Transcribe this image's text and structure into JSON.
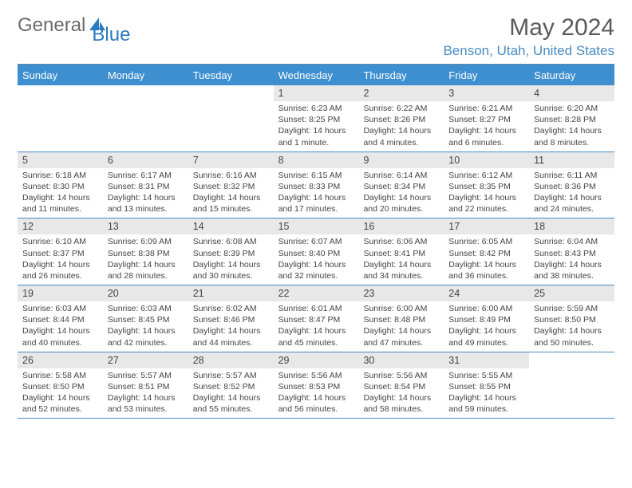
{
  "logo": {
    "word1": "General",
    "word2": "Blue"
  },
  "title": "May 2024",
  "location": "Benson, Utah, United States",
  "colors": {
    "accent": "#3d8fcf",
    "accent_line": "#4a8bc2",
    "day_bar": "#e8e8e8",
    "text": "#444444",
    "logo_gray": "#6a6a6a",
    "logo_blue": "#2b7bbf"
  },
  "days_of_week": [
    "Sunday",
    "Monday",
    "Tuesday",
    "Wednesday",
    "Thursday",
    "Friday",
    "Saturday"
  ],
  "first_day_index": 3,
  "days": [
    {
      "n": 1,
      "sr": "6:23 AM",
      "ss": "8:25 PM",
      "dl": "14 hours and 1 minute."
    },
    {
      "n": 2,
      "sr": "6:22 AM",
      "ss": "8:26 PM",
      "dl": "14 hours and 4 minutes."
    },
    {
      "n": 3,
      "sr": "6:21 AM",
      "ss": "8:27 PM",
      "dl": "14 hours and 6 minutes."
    },
    {
      "n": 4,
      "sr": "6:20 AM",
      "ss": "8:28 PM",
      "dl": "14 hours and 8 minutes."
    },
    {
      "n": 5,
      "sr": "6:18 AM",
      "ss": "8:30 PM",
      "dl": "14 hours and 11 minutes."
    },
    {
      "n": 6,
      "sr": "6:17 AM",
      "ss": "8:31 PM",
      "dl": "14 hours and 13 minutes."
    },
    {
      "n": 7,
      "sr": "6:16 AM",
      "ss": "8:32 PM",
      "dl": "14 hours and 15 minutes."
    },
    {
      "n": 8,
      "sr": "6:15 AM",
      "ss": "8:33 PM",
      "dl": "14 hours and 17 minutes."
    },
    {
      "n": 9,
      "sr": "6:14 AM",
      "ss": "8:34 PM",
      "dl": "14 hours and 20 minutes."
    },
    {
      "n": 10,
      "sr": "6:12 AM",
      "ss": "8:35 PM",
      "dl": "14 hours and 22 minutes."
    },
    {
      "n": 11,
      "sr": "6:11 AM",
      "ss": "8:36 PM",
      "dl": "14 hours and 24 minutes."
    },
    {
      "n": 12,
      "sr": "6:10 AM",
      "ss": "8:37 PM",
      "dl": "14 hours and 26 minutes."
    },
    {
      "n": 13,
      "sr": "6:09 AM",
      "ss": "8:38 PM",
      "dl": "14 hours and 28 minutes."
    },
    {
      "n": 14,
      "sr": "6:08 AM",
      "ss": "8:39 PM",
      "dl": "14 hours and 30 minutes."
    },
    {
      "n": 15,
      "sr": "6:07 AM",
      "ss": "8:40 PM",
      "dl": "14 hours and 32 minutes."
    },
    {
      "n": 16,
      "sr": "6:06 AM",
      "ss": "8:41 PM",
      "dl": "14 hours and 34 minutes."
    },
    {
      "n": 17,
      "sr": "6:05 AM",
      "ss": "8:42 PM",
      "dl": "14 hours and 36 minutes."
    },
    {
      "n": 18,
      "sr": "6:04 AM",
      "ss": "8:43 PM",
      "dl": "14 hours and 38 minutes."
    },
    {
      "n": 19,
      "sr": "6:03 AM",
      "ss": "8:44 PM",
      "dl": "14 hours and 40 minutes."
    },
    {
      "n": 20,
      "sr": "6:03 AM",
      "ss": "8:45 PM",
      "dl": "14 hours and 42 minutes."
    },
    {
      "n": 21,
      "sr": "6:02 AM",
      "ss": "8:46 PM",
      "dl": "14 hours and 44 minutes."
    },
    {
      "n": 22,
      "sr": "6:01 AM",
      "ss": "8:47 PM",
      "dl": "14 hours and 45 minutes."
    },
    {
      "n": 23,
      "sr": "6:00 AM",
      "ss": "8:48 PM",
      "dl": "14 hours and 47 minutes."
    },
    {
      "n": 24,
      "sr": "6:00 AM",
      "ss": "8:49 PM",
      "dl": "14 hours and 49 minutes."
    },
    {
      "n": 25,
      "sr": "5:59 AM",
      "ss": "8:50 PM",
      "dl": "14 hours and 50 minutes."
    },
    {
      "n": 26,
      "sr": "5:58 AM",
      "ss": "8:50 PM",
      "dl": "14 hours and 52 minutes."
    },
    {
      "n": 27,
      "sr": "5:57 AM",
      "ss": "8:51 PM",
      "dl": "14 hours and 53 minutes."
    },
    {
      "n": 28,
      "sr": "5:57 AM",
      "ss": "8:52 PM",
      "dl": "14 hours and 55 minutes."
    },
    {
      "n": 29,
      "sr": "5:56 AM",
      "ss": "8:53 PM",
      "dl": "14 hours and 56 minutes."
    },
    {
      "n": 30,
      "sr": "5:56 AM",
      "ss": "8:54 PM",
      "dl": "14 hours and 58 minutes."
    },
    {
      "n": 31,
      "sr": "5:55 AM",
      "ss": "8:55 PM",
      "dl": "14 hours and 59 minutes."
    }
  ],
  "labels": {
    "sunrise": "Sunrise:",
    "sunset": "Sunset:",
    "daylight": "Daylight:"
  }
}
